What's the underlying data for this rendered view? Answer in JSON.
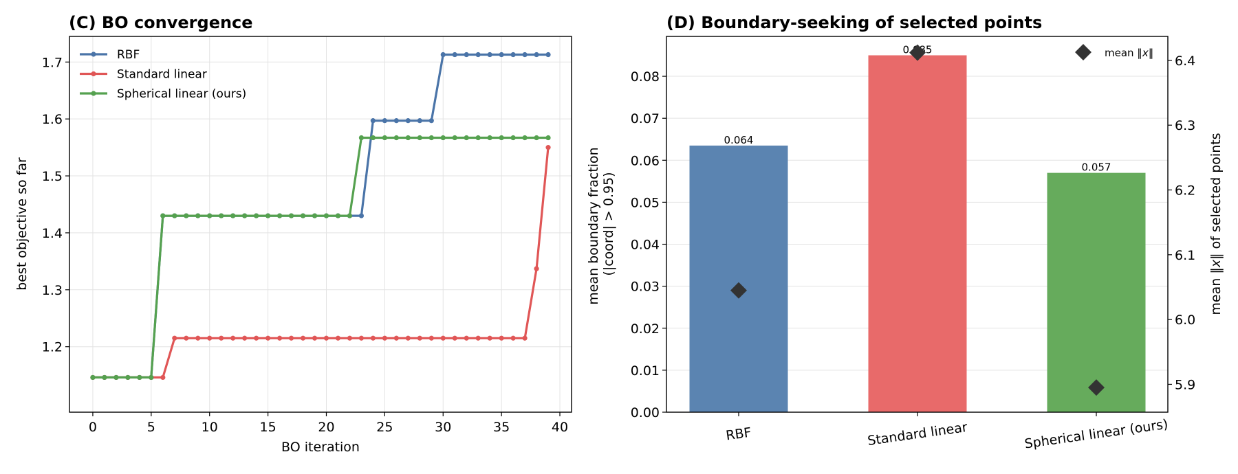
{
  "chart_data": [
    {
      "type": "line",
      "title": "(C) BO convergence",
      "xlabel": "BO iteration",
      "ylabel": "best objective so far",
      "xlim": [
        -2,
        41
      ],
      "ylim": [
        1.085,
        1.745
      ],
      "xticks": [
        0,
        5,
        10,
        15,
        20,
        25,
        30,
        35,
        40
      ],
      "yticks": [
        1.2,
        1.3,
        1.4,
        1.5,
        1.6,
        1.7
      ],
      "grid": true,
      "legend": "top-left",
      "series": [
        {
          "name": "RBF",
          "color": "#4a74a8",
          "x": [
            0,
            1,
            2,
            3,
            4,
            5,
            6,
            7,
            8,
            9,
            10,
            11,
            12,
            13,
            14,
            15,
            16,
            17,
            18,
            19,
            20,
            21,
            22,
            23,
            24,
            25,
            26,
            27,
            28,
            29,
            30,
            31,
            32,
            33,
            34,
            35,
            36,
            37,
            38,
            39
          ],
          "values": [
            1.146,
            1.146,
            1.146,
            1.146,
            1.146,
            1.146,
            1.43,
            1.43,
            1.43,
            1.43,
            1.43,
            1.43,
            1.43,
            1.43,
            1.43,
            1.43,
            1.43,
            1.43,
            1.43,
            1.43,
            1.43,
            1.43,
            1.43,
            1.43,
            1.597,
            1.597,
            1.597,
            1.597,
            1.597,
            1.597,
            1.713,
            1.713,
            1.713,
            1.713,
            1.713,
            1.713,
            1.713,
            1.713,
            1.713,
            1.713
          ]
        },
        {
          "name": "Standard linear",
          "color": "#e05656",
          "x": [
            0,
            1,
            2,
            3,
            4,
            5,
            6,
            7,
            8,
            9,
            10,
            11,
            12,
            13,
            14,
            15,
            16,
            17,
            18,
            19,
            20,
            21,
            22,
            23,
            24,
            25,
            26,
            27,
            28,
            29,
            30,
            31,
            32,
            33,
            34,
            35,
            36,
            37,
            38,
            39
          ],
          "values": [
            1.146,
            1.146,
            1.146,
            1.146,
            1.146,
            1.146,
            1.146,
            1.215,
            1.215,
            1.215,
            1.215,
            1.215,
            1.215,
            1.215,
            1.215,
            1.215,
            1.215,
            1.215,
            1.215,
            1.215,
            1.215,
            1.215,
            1.215,
            1.215,
            1.215,
            1.215,
            1.215,
            1.215,
            1.215,
            1.215,
            1.215,
            1.215,
            1.215,
            1.215,
            1.215,
            1.215,
            1.215,
            1.215,
            1.337,
            1.55
          ]
        },
        {
          "name": "Spherical linear (ours)",
          "color": "#55a14f",
          "x": [
            0,
            1,
            2,
            3,
            4,
            5,
            6,
            7,
            8,
            9,
            10,
            11,
            12,
            13,
            14,
            15,
            16,
            17,
            18,
            19,
            20,
            21,
            22,
            23,
            24,
            25,
            26,
            27,
            28,
            29,
            30,
            31,
            32,
            33,
            34,
            35,
            36,
            37,
            38,
            39
          ],
          "values": [
            1.146,
            1.146,
            1.146,
            1.146,
            1.146,
            1.146,
            1.43,
            1.43,
            1.43,
            1.43,
            1.43,
            1.43,
            1.43,
            1.43,
            1.43,
            1.43,
            1.43,
            1.43,
            1.43,
            1.43,
            1.43,
            1.43,
            1.43,
            1.567,
            1.567,
            1.567,
            1.567,
            1.567,
            1.567,
            1.567,
            1.567,
            1.567,
            1.567,
            1.567,
            1.567,
            1.567,
            1.567,
            1.567,
            1.567,
            1.567
          ]
        }
      ]
    },
    {
      "type": "bar",
      "title": "(D) Boundary-seeking of selected points",
      "categories": [
        "RBF",
        "Standard linear",
        "Spherical linear (ours)"
      ],
      "colors": [
        "#5b84b1",
        "#e86a6a",
        "#66ab5c"
      ],
      "values": [
        0.0635,
        0.085,
        0.057
      ],
      "bar_labels": [
        "0.064",
        "0.085",
        "0.057"
      ],
      "ylabel_lines": [
        "mean boundary fraction",
        "(|coord| > 0.95)"
      ],
      "ylim": [
        0,
        0.0895
      ],
      "yticks": [
        0.0,
        0.01,
        0.02,
        0.03,
        0.04,
        0.05,
        0.06,
        0.07,
        0.08
      ],
      "ytick_labels": [
        "0.00",
        "0.01",
        "0.02",
        "0.03",
        "0.04",
        "0.05",
        "0.06",
        "0.07",
        "0.08"
      ],
      "grid": true,
      "secondary": {
        "type": "scatter",
        "marker": "diamond",
        "color": "#333333",
        "name_parts": [
          "mean ‖",
          "x",
          "‖"
        ],
        "ylabel_parts": [
          "mean ‖",
          "x",
          "‖ of selected points"
        ],
        "values": [
          6.045,
          6.412,
          5.895
        ],
        "ylim": [
          5.857,
          6.437
        ],
        "yticks": [
          5.9,
          6.0,
          6.1,
          6.2,
          6.3,
          6.4
        ],
        "ytick_labels": [
          "5.9",
          "6.0",
          "6.1",
          "6.2",
          "6.3",
          "6.4"
        ],
        "legend": "top-right"
      }
    }
  ]
}
